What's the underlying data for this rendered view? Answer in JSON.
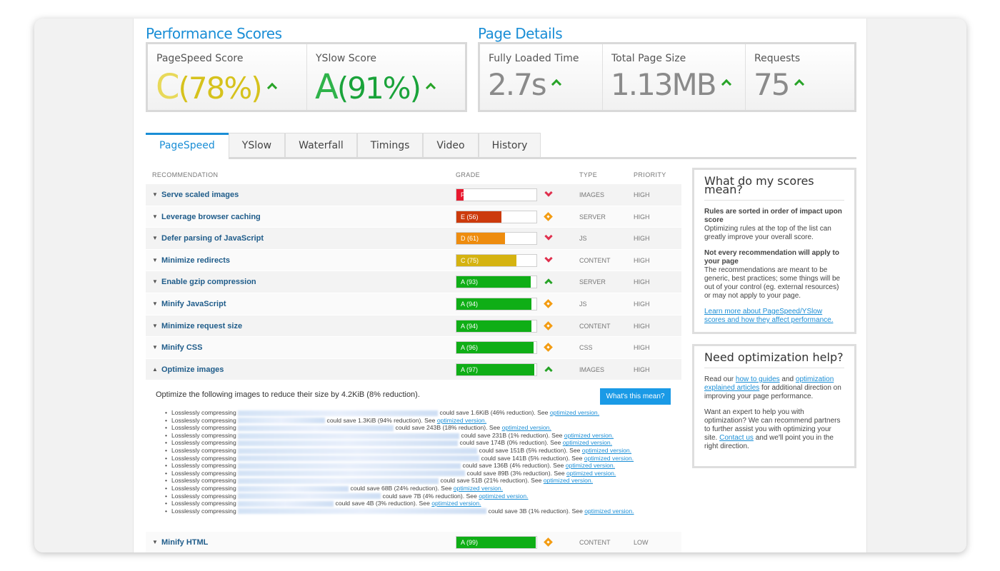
{
  "performance": {
    "title": "Performance Scores",
    "pagespeed": {
      "label": "PageSpeed Score",
      "grade": "C",
      "pct": "(78%)"
    },
    "yslow": {
      "label": "YSlow Score",
      "grade": "A",
      "pct": "(91%)"
    }
  },
  "details": {
    "title": "Page Details",
    "load": {
      "label": "Fully Loaded Time",
      "value": "2.7s"
    },
    "size": {
      "label": "Total Page Size",
      "value": "1.13MB"
    },
    "requests": {
      "label": "Requests",
      "value": "75"
    }
  },
  "colors": {
    "accent": "#1a8ed6",
    "grade_c": "#d6c21d",
    "grade_a": "#1aa33a"
  },
  "tabs": [
    "PageSpeed",
    "YSlow",
    "Waterfall",
    "Timings",
    "Video",
    "History"
  ],
  "table": {
    "headers": {
      "recommendation": "RECOMMENDATION",
      "grade": "GRADE",
      "type": "TYPE",
      "priority": "PRIORITY"
    },
    "rows": [
      {
        "name": "Serve scaled images",
        "grade": "F (9)",
        "score": 9,
        "color": "#e8182e",
        "trend": "down",
        "type": "IMAGES",
        "priority": "HIGH",
        "caret": "▼"
      },
      {
        "name": "Leverage browser caching",
        "grade": "E (56)",
        "score": 56,
        "color": "#cc3a0c",
        "trend": "neutral",
        "type": "SERVER",
        "priority": "HIGH",
        "caret": "▼"
      },
      {
        "name": "Defer parsing of JavaScript",
        "grade": "D (61)",
        "score": 61,
        "color": "#ee8c0e",
        "trend": "down",
        "type": "JS",
        "priority": "HIGH",
        "caret": "▼"
      },
      {
        "name": "Minimize redirects",
        "grade": "C (75)",
        "score": 75,
        "color": "#d5b311",
        "trend": "down",
        "type": "CONTENT",
        "priority": "HIGH",
        "caret": "▼"
      },
      {
        "name": "Enable gzip compression",
        "grade": "A (93)",
        "score": 93,
        "color": "#0fae16",
        "trend": "up",
        "type": "SERVER",
        "priority": "HIGH",
        "caret": "▼"
      },
      {
        "name": "Minify JavaScript",
        "grade": "A (94)",
        "score": 94,
        "color": "#0fae16",
        "trend": "neutral",
        "type": "JS",
        "priority": "HIGH",
        "caret": "▼"
      },
      {
        "name": "Minimize request size",
        "grade": "A (94)",
        "score": 94,
        "color": "#0fae16",
        "trend": "neutral",
        "type": "CONTENT",
        "priority": "HIGH",
        "caret": "▼"
      },
      {
        "name": "Minify CSS",
        "grade": "A (96)",
        "score": 96,
        "color": "#0fae16",
        "trend": "neutral",
        "type": "CSS",
        "priority": "HIGH",
        "caret": "▼"
      },
      {
        "name": "Optimize images",
        "grade": "A (97)",
        "score": 97,
        "color": "#0fae16",
        "trend": "up",
        "type": "IMAGES",
        "priority": "HIGH",
        "caret": "▲"
      }
    ],
    "last_row": {
      "name": "Minify HTML",
      "grade": "A (99)",
      "score": 99,
      "color": "#0fae16",
      "trend": "neutral",
      "type": "CONTENT",
      "priority": "LOW",
      "caret": "▼"
    }
  },
  "detail": {
    "intro": "Optimize the following images to reduce their size by 4.2KiB (8% reduction).",
    "button": "What's this mean?",
    "items": [
      {
        "prefix": "Losslessly compressing",
        "saving": "could save 1.6KiB (46% reduction). See",
        "link": "optimized version.",
        "blur": 280
      },
      {
        "prefix": "Losslessly compressing",
        "saving": "could save 1.3KiB (94% reduction). See",
        "link": "optimized version.",
        "blur": 122
      },
      {
        "prefix": "Losslessly compressing",
        "saving": "could save 243B (18% reduction). See",
        "link": "optimized version.",
        "blur": 218
      },
      {
        "prefix": "Losslessly compressing",
        "saving": "could save 231B (1% reduction). See",
        "link": "optimized version.",
        "blur": 310
      },
      {
        "prefix": "Losslessly compressing",
        "saving": "could save 174B (0% reduction). See",
        "link": "optimized version.",
        "blur": 308
      },
      {
        "prefix": "Losslessly compressing",
        "saving": "could save 151B (5% reduction). See",
        "link": "optimized version.",
        "blur": 335
      },
      {
        "prefix": "Losslessly compressing",
        "saving": "could save 141B (5% reduction). See",
        "link": "optimized version.",
        "blur": 338
      },
      {
        "prefix": "Losslessly compressing",
        "saving": "could save 136B (4% reduction). See",
        "link": "optimized version.",
        "blur": 312
      },
      {
        "prefix": "Losslessly compressing",
        "saving": "could save 89B (3% reduction). See",
        "link": "optimized version.",
        "blur": 318
      },
      {
        "prefix": "Losslessly compressing",
        "saving": "could save 51B (21% reduction). See",
        "link": "optimized version.",
        "blur": 281
      },
      {
        "prefix": "Losslessly compressing",
        "saving": "could save 68B (24% reduction). See",
        "link": "optimized version.",
        "blur": 155
      },
      {
        "prefix": "Losslessly compressing",
        "saving": "could save 7B (4% reduction). See",
        "link": "optimized version.",
        "blur": 200
      },
      {
        "prefix": "Losslessly compressing",
        "saving": "could save 4B (3% reduction). See",
        "link": "optimized version.",
        "blur": 134
      },
      {
        "prefix": "Losslessly compressing",
        "saving": "could save 3B (1% reduction). See",
        "link": "optimized version.",
        "blur": 348
      }
    ]
  },
  "scores_panel": {
    "title": "What do my scores mean?",
    "bold1": "Rules are sorted in order of impact upon score",
    "text1": "Optimizing rules at the top of the list can greatly improve your overall score.",
    "bold2": "Not every recommendation will apply to your page",
    "text2": "The recommendations are meant to be generic, best practices; some things will be out of your control (eg. external resources) or may not apply to your page.",
    "link": "Learn more about PageSpeed/YSlow scores and how they affect performance."
  },
  "help_panel": {
    "title": "Need optimization help?",
    "p1_a": "Read our ",
    "p1_link1": "how to guides",
    "p1_b": " and ",
    "p1_link2": "optimization explained articles",
    "p1_c": " for additional direction on improving your page performance.",
    "p2_a": "Want an expert to help you with optimization? We can recommend partners to further assist you with optimizing your site. ",
    "p2_link": "Contact us",
    "p2_b": " and we'll point you in the right direction."
  }
}
